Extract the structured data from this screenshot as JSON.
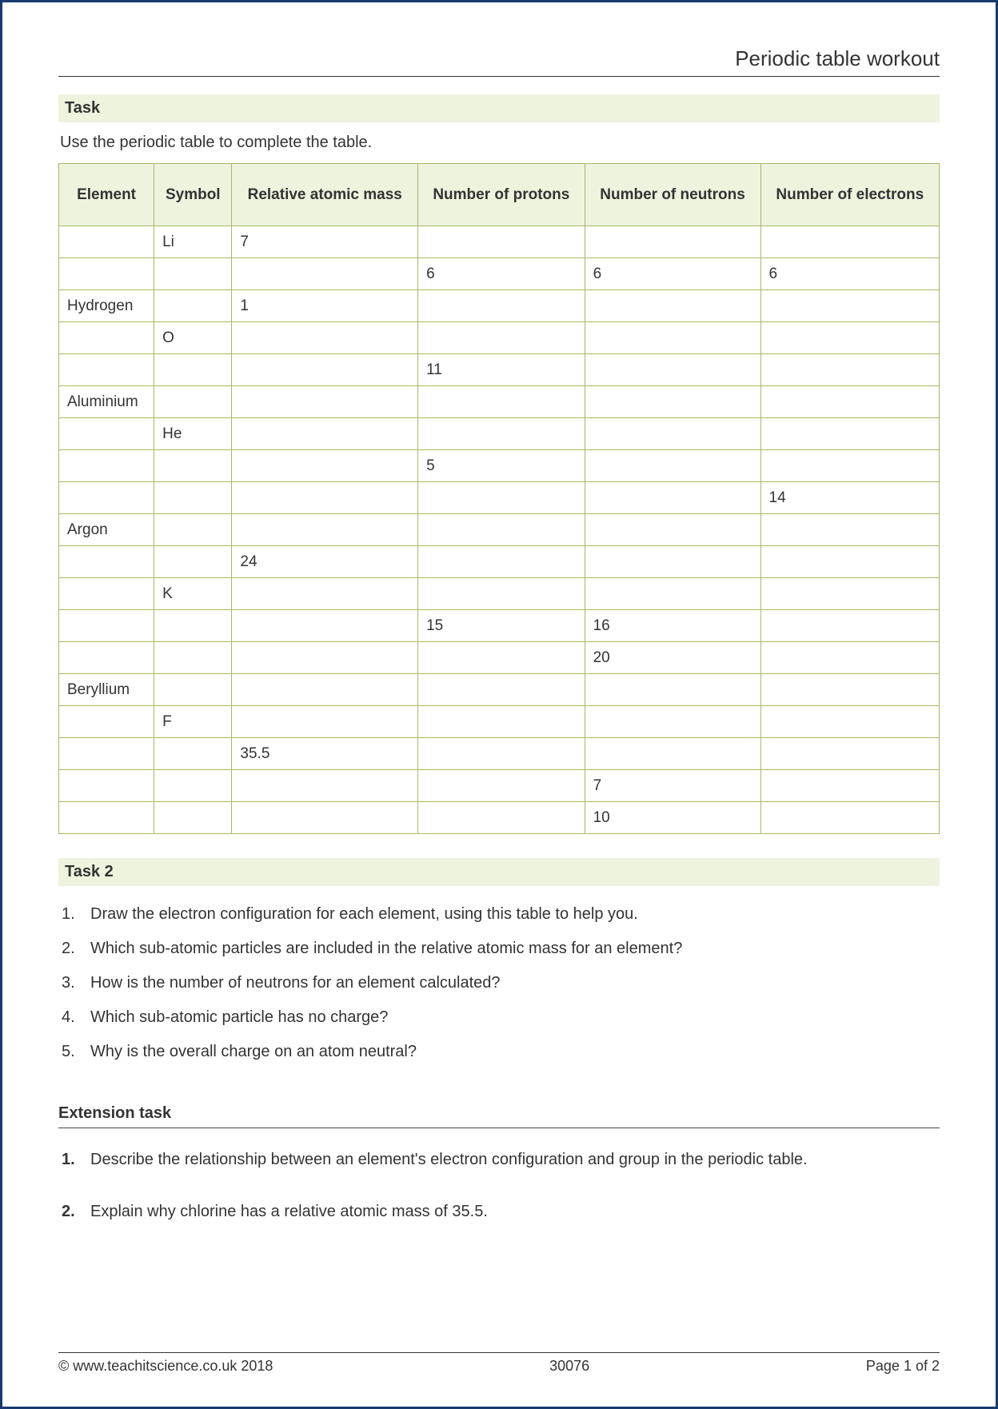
{
  "page": {
    "title": "Periodic table workout",
    "footer_left": "© www.teachitscience.co.uk 2018",
    "footer_center": "30076",
    "footer_right": "Page 1 of 2"
  },
  "task1": {
    "heading": "Task",
    "instruction": "Use the periodic table to complete the table.",
    "columns": [
      "Element",
      "Symbol",
      "Relative atomic mass",
      "Number of protons",
      "Number of neutrons",
      "Number of electrons"
    ],
    "rows": [
      [
        "",
        "Li",
        "7",
        "",
        "",
        ""
      ],
      [
        "",
        "",
        "",
        "6",
        "6",
        "6"
      ],
      [
        "Hydrogen",
        "",
        "1",
        "",
        "",
        ""
      ],
      [
        "",
        "O",
        "",
        "",
        "",
        ""
      ],
      [
        "",
        "",
        "",
        "11",
        "",
        ""
      ],
      [
        "Aluminium",
        "",
        "",
        "",
        "",
        ""
      ],
      [
        "",
        "He",
        "",
        "",
        "",
        ""
      ],
      [
        "",
        "",
        "",
        "5",
        "",
        ""
      ],
      [
        "",
        "",
        "",
        "",
        "",
        "14"
      ],
      [
        "Argon",
        "",
        "",
        "",
        "",
        ""
      ],
      [
        "",
        "",
        "24",
        "",
        "",
        ""
      ],
      [
        "",
        "K",
        "",
        "",
        "",
        ""
      ],
      [
        "",
        "",
        "",
        "15",
        "16",
        ""
      ],
      [
        "",
        "",
        "",
        "",
        "20",
        ""
      ],
      [
        "Beryllium",
        "",
        "",
        "",
        "",
        ""
      ],
      [
        "",
        "F",
        "",
        "",
        "",
        ""
      ],
      [
        "",
        "",
        "35.5",
        "",
        "",
        ""
      ],
      [
        "",
        "",
        "",
        "",
        "7",
        ""
      ],
      [
        "",
        "",
        "",
        "",
        "10",
        ""
      ]
    ]
  },
  "task2": {
    "heading": "Task 2",
    "questions": [
      "Draw the electron configuration for each element, using this table to help you.",
      "Which sub-atomic particles are included in the relative atomic mass for an element?",
      "How is the number of neutrons for an element calculated?",
      "Which sub-atomic particle has no charge?",
      "Why is the overall charge on an atom neutral?"
    ]
  },
  "extension": {
    "heading": "Extension task",
    "questions": [
      "Describe the relationship between an element's electron configuration and group in the periodic table.",
      "Explain why chlorine has a relative atomic mass of 35.5."
    ]
  },
  "style": {
    "border_color": "#1a3a6e",
    "section_bg": "#eef3de",
    "table_border": "#a7b96a",
    "text_color": "#333333"
  }
}
